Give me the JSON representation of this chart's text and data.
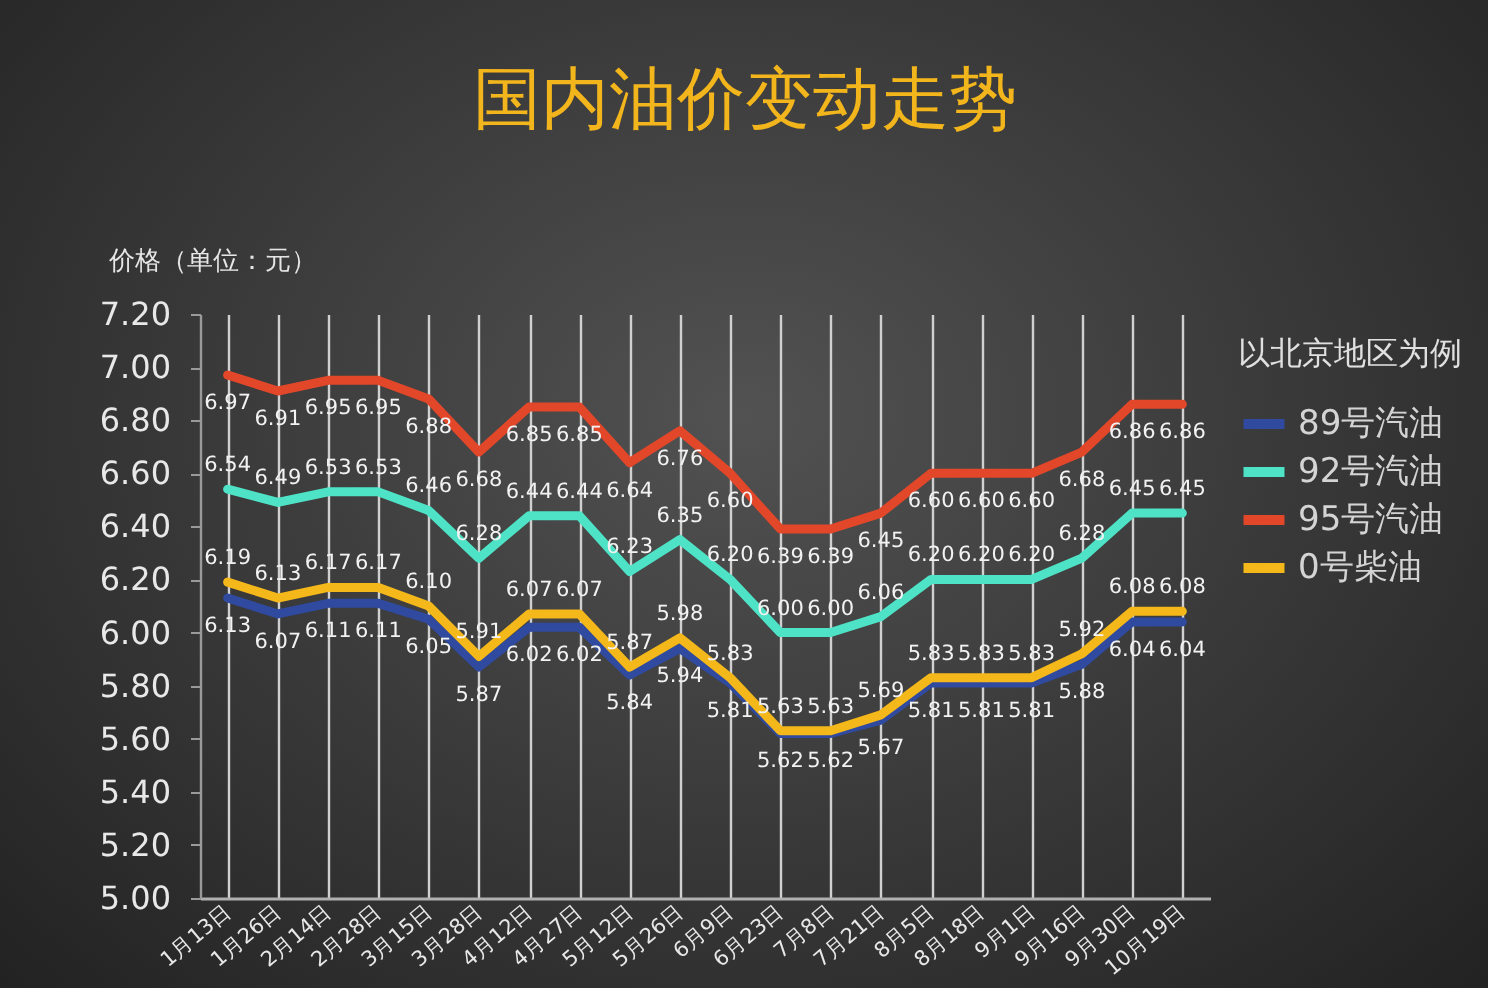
{
  "chart_data": {
    "type": "line",
    "title": "国内油价变动走势",
    "ylabel": "价格（单位：元）",
    "legend_title": "以北京地区为例",
    "categories": [
      "1月13日",
      "1月26日",
      "2月14日",
      "2月28日",
      "3月15日",
      "3月28日",
      "4月12日",
      "4月27日",
      "5月12日",
      "5月26日",
      "6月9日",
      "6月23日",
      "7月8日",
      "7月21日",
      "8月5日",
      "8月18日",
      "9月1日",
      "9月16日",
      "9月30日",
      "10月19日"
    ],
    "series": [
      {
        "name": "89号汽油",
        "color": "#2f4a9e",
        "values": [
          6.13,
          6.07,
          6.11,
          6.11,
          6.05,
          5.87,
          6.02,
          6.02,
          5.84,
          5.94,
          5.81,
          5.62,
          5.62,
          5.67,
          5.81,
          5.81,
          5.81,
          5.88,
          6.04,
          6.04
        ],
        "value_labels": [
          "6.13",
          "6.07",
          "6.11",
          "6.11",
          "6.05",
          "5.87",
          "6.02",
          "6.02",
          "5.84",
          "5.94",
          "5.81",
          "5.62",
          "5.62",
          "5.67",
          "5.81",
          "5.81",
          "5.81",
          "5.88",
          "6.04",
          "6.04"
        ]
      },
      {
        "name": "92号汽油",
        "color": "#4ee3c6",
        "values": [
          6.54,
          6.49,
          6.53,
          6.53,
          6.46,
          6.28,
          6.44,
          6.44,
          6.23,
          6.35,
          6.2,
          6.0,
          6.0,
          6.06,
          6.2,
          6.2,
          6.2,
          6.28,
          6.45,
          6.45
        ],
        "value_labels": [
          "6.54",
          "6.49",
          "6.53",
          "6.53",
          "6.46",
          "6.28",
          "6.44",
          "6.44",
          "6.23",
          "6.35",
          "6.20",
          "6.00",
          "6.00",
          "6.06",
          "6.20",
          "6.20",
          "6.20",
          "6.28",
          "6.45",
          "6.45"
        ]
      },
      {
        "name": "95号汽油",
        "color": "#e2472a",
        "values": [
          6.97,
          6.91,
          6.95,
          6.95,
          6.88,
          6.68,
          6.85,
          6.85,
          6.64,
          6.76,
          6.6,
          6.39,
          6.39,
          6.45,
          6.6,
          6.6,
          6.6,
          6.68,
          6.86,
          6.86
        ],
        "value_labels": [
          "6.97",
          "6.91",
          "6.95",
          "6.95",
          "6.88",
          "6.68",
          "6.85",
          "6.85",
          "6.64",
          "6.76",
          "6.60",
          "6.39",
          "6.39",
          "6.45",
          "6.60",
          "6.60",
          "6.60",
          "6.68",
          "6.86",
          "6.86"
        ]
      },
      {
        "name": "0号柴油",
        "color": "#f5b81a",
        "values": [
          6.19,
          6.13,
          6.17,
          6.17,
          6.1,
          5.91,
          6.07,
          6.07,
          5.87,
          5.98,
          5.83,
          5.63,
          5.63,
          5.69,
          5.83,
          5.83,
          5.83,
          5.92,
          6.08,
          6.08
        ],
        "value_labels": [
          "6.19",
          "6.13",
          "6.17",
          "6.17",
          "6.10",
          "5.91",
          "6.07",
          "6.07",
          "5.87",
          "5.98",
          "5.83",
          "5.63",
          "5.63",
          "5.69",
          "5.83",
          "5.83",
          "5.83",
          "5.92",
          "6.08",
          "6.08"
        ]
      }
    ],
    "ylim": [
      5,
      7.2
    ],
    "yticks": [
      {
        "value": 5,
        "label": "5.00"
      },
      {
        "value": 5.2,
        "label": "5.20"
      },
      {
        "value": 5.4,
        "label": "5.40"
      },
      {
        "value": 5.6,
        "label": "5.60"
      },
      {
        "value": 5.8,
        "label": "5.80"
      },
      {
        "value": 6,
        "label": "6.00"
      },
      {
        "value": 6.2,
        "label": "6.20"
      },
      {
        "value": 6.4,
        "label": "6.40"
      },
      {
        "value": 6.6,
        "label": "6.60"
      },
      {
        "value": 6.8,
        "label": "6.80"
      },
      {
        "value": 7,
        "label": "7.00"
      },
      {
        "value": 7.2,
        "label": "7.20"
      }
    ],
    "grid": "x",
    "legend": "right",
    "line_style": "solid"
  }
}
